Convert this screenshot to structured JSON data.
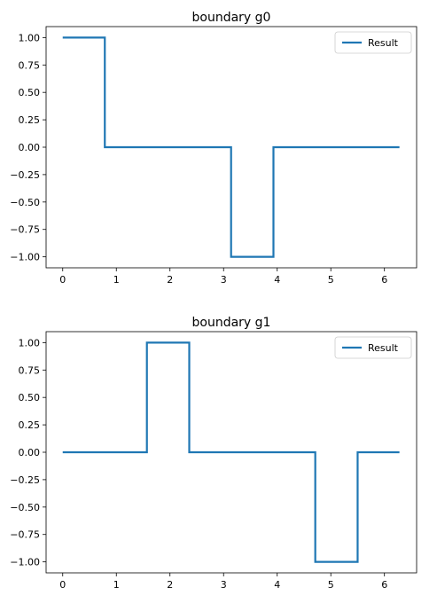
{
  "chart_data": [
    {
      "type": "line",
      "title": "boundary g0",
      "xlabel": "",
      "ylabel": "",
      "xlim": [
        -0.31,
        6.6
      ],
      "ylim": [
        -1.1,
        1.1
      ],
      "xticks": [
        0,
        1,
        2,
        3,
        4,
        5,
        6
      ],
      "yticks": [
        1.0,
        0.75,
        0.5,
        0.25,
        0.0,
        -0.25,
        -0.5,
        -0.75,
        -1.0
      ],
      "ytick_labels": [
        "1.00",
        "0.75",
        "0.50",
        "0.25",
        "0.00",
        "−0.25",
        "−0.50",
        "−0.75",
        "−1.00"
      ],
      "legend": {
        "position": "top-right"
      },
      "grid": false,
      "series": [
        {
          "name": "Result",
          "color": "#1f77b4",
          "x": [
            0.0,
            0.785,
            0.785,
            3.14,
            3.14,
            3.93,
            3.93,
            6.28
          ],
          "y": [
            1,
            1,
            0,
            0,
            -1,
            -1,
            0,
            0
          ]
        }
      ]
    },
    {
      "type": "line",
      "title": "boundary g1",
      "xlabel": "",
      "ylabel": "",
      "xlim": [
        -0.31,
        6.6
      ],
      "ylim": [
        -1.1,
        1.1
      ],
      "xticks": [
        0,
        1,
        2,
        3,
        4,
        5,
        6
      ],
      "yticks": [
        1.0,
        0.75,
        0.5,
        0.25,
        0.0,
        -0.25,
        -0.5,
        -0.75,
        -1.0
      ],
      "ytick_labels": [
        "1.00",
        "0.75",
        "0.50",
        "0.25",
        "0.00",
        "−0.25",
        "−0.50",
        "−0.75",
        "−1.00"
      ],
      "legend": {
        "position": "top-right"
      },
      "grid": false,
      "series": [
        {
          "name": "Result",
          "color": "#1f77b4",
          "x": [
            0.0,
            1.57,
            1.57,
            2.36,
            2.36,
            4.71,
            4.71,
            5.5,
            5.5,
            6.28
          ],
          "y": [
            0,
            0,
            1,
            1,
            0,
            0,
            -1,
            -1,
            0,
            0
          ]
        }
      ]
    }
  ]
}
